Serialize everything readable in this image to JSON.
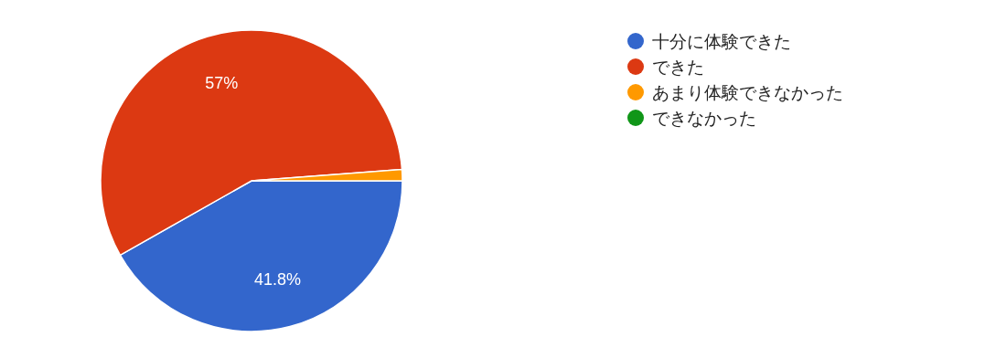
{
  "chart_data": {
    "type": "pie",
    "categories": [
      "十分に体験できた",
      "できた",
      "あまり体験できなかった",
      "できなかった"
    ],
    "values": [
      41.8,
      57,
      1.2,
      0
    ],
    "colors": [
      "#3366cc",
      "#dc3912",
      "#ff9900",
      "#109618"
    ],
    "value_labels": [
      "41.8%",
      "57%",
      null,
      null
    ],
    "legend": "right"
  }
}
